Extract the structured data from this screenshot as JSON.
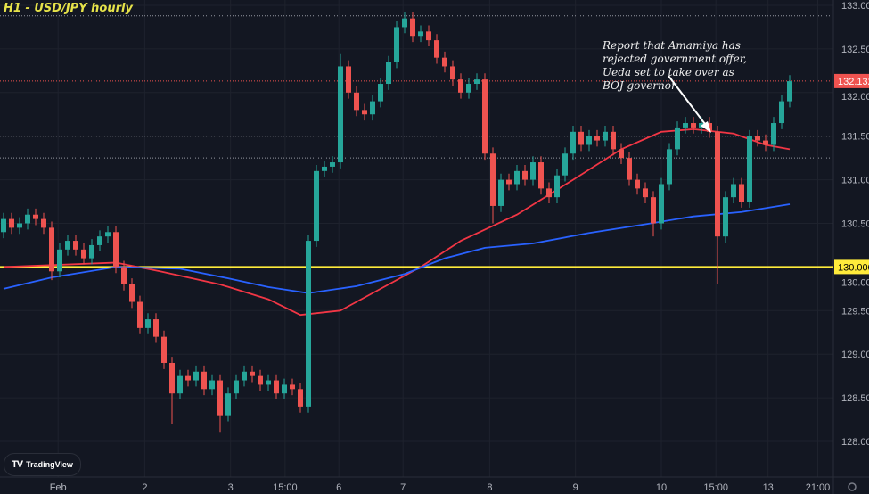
{
  "header": {
    "title": "H1 - USD/JPY hourly"
  },
  "annotation": {
    "text": "Report that Amamiya has rejected government offer,  Ueda set to take over as BOJ governor"
  },
  "branding": {
    "logo_text": "TradingView"
  },
  "chart_data": {
    "type": "candlestick",
    "symbol": "USD/JPY",
    "timeframe": "H1",
    "ylim": [
      127.7,
      133.1
    ],
    "y_ticks": [
      "133.000",
      "132.500",
      "132.000",
      "131.500",
      "131.000",
      "130.500",
      "130.000",
      "129.500",
      "129.000",
      "128.500",
      "128.000"
    ],
    "x_ticks": [
      {
        "label": "Feb",
        "at": 6.8
      },
      {
        "label": "2",
        "at": 17.6
      },
      {
        "label": "3",
        "at": 28.3
      },
      {
        "label": "15:00",
        "at": 35.1
      },
      {
        "label": "6",
        "at": 41.8
      },
      {
        "label": "7",
        "at": 49.8
      },
      {
        "label": "8",
        "at": 60.6
      },
      {
        "label": "9",
        "at": 71.3
      },
      {
        "label": "10",
        "at": 82
      },
      {
        "label": "15:00",
        "at": 88.8
      },
      {
        "label": "13",
        "at": 95.3
      },
      {
        "label": "21:00",
        "at": 101.5
      }
    ],
    "close": [
      130.55,
      130.45,
      130.5,
      130.6,
      130.55,
      130.45,
      129.95,
      130.2,
      130.3,
      130.2,
      130.1,
      130.25,
      130.35,
      130.4,
      130.0,
      129.8,
      129.6,
      129.3,
      129.4,
      129.2,
      128.9,
      128.55,
      128.75,
      128.7,
      128.8,
      128.6,
      128.7,
      128.3,
      128.55,
      128.7,
      128.8,
      128.75,
      128.65,
      128.7,
      128.55,
      128.65,
      128.6,
      128.4,
      130.3,
      131.1,
      131.15,
      131.2,
      132.3,
      132.0,
      131.8,
      131.75,
      131.9,
      132.1,
      132.35,
      132.75,
      132.85,
      132.65,
      132.7,
      132.6,
      132.4,
      132.3,
      132.15,
      132.0,
      132.1,
      132.15,
      131.3,
      130.7,
      131.0,
      130.95,
      131.1,
      131.0,
      131.2,
      130.9,
      130.8,
      131.05,
      131.3,
      131.55,
      131.4,
      131.5,
      131.45,
      131.55,
      131.35,
      131.25,
      131.0,
      130.9,
      130.8,
      130.5,
      130.95,
      131.35,
      131.6,
      131.65,
      131.6,
      131.65,
      131.55,
      130.35,
      130.8,
      130.95,
      130.75,
      131.5,
      131.45,
      131.4,
      131.65,
      131.9,
      132.13
    ],
    "first_open": 130.4,
    "wick_extremes": [
      {
        "i": 6,
        "low": 129.85
      },
      {
        "i": 21,
        "low": 128.2
      },
      {
        "i": 27,
        "low": 128.1
      },
      {
        "i": 42,
        "high": 132.45
      },
      {
        "i": 50,
        "high": 132.92
      },
      {
        "i": 61,
        "low": 130.5
      },
      {
        "i": 81,
        "low": 130.35
      },
      {
        "i": 89,
        "low": 129.8
      },
      {
        "i": 98,
        "high": 132.2
      }
    ],
    "moving_averages": [
      {
        "color": "#f23645",
        "points": [
          [
            0,
            130.0
          ],
          [
            14,
            130.05
          ],
          [
            19.5,
            129.95
          ],
          [
            27,
            129.8
          ],
          [
            33,
            129.63
          ],
          [
            37,
            129.45
          ],
          [
            42,
            129.5
          ],
          [
            46,
            129.7
          ],
          [
            52,
            130.0
          ],
          [
            57,
            130.3
          ],
          [
            64,
            130.6
          ],
          [
            71,
            131.0
          ],
          [
            77,
            131.35
          ],
          [
            82,
            131.55
          ],
          [
            86,
            131.58
          ],
          [
            91,
            131.53
          ],
          [
            95,
            131.4
          ],
          [
            98,
            131.35
          ]
        ]
      },
      {
        "color": "#2962ff",
        "points": [
          [
            0,
            129.75
          ],
          [
            6,
            129.88
          ],
          [
            14,
            130.0
          ],
          [
            22,
            129.98
          ],
          [
            28,
            129.87
          ],
          [
            33,
            129.77
          ],
          [
            38,
            129.7
          ],
          [
            44,
            129.78
          ],
          [
            50,
            129.92
          ],
          [
            55,
            130.1
          ],
          [
            60,
            130.22
          ],
          [
            66,
            130.27
          ],
          [
            73,
            130.39
          ],
          [
            80,
            130.49
          ],
          [
            86,
            130.58
          ],
          [
            92,
            130.63
          ],
          [
            98,
            130.72
          ]
        ]
      }
    ],
    "horizontal_lines": [
      {
        "price": 130.0,
        "style": "solid",
        "color": "#ffeb3b",
        "label": "130.000"
      },
      {
        "price": 132.132,
        "style": "dotted",
        "color": "#ef5350",
        "label": "132.132"
      },
      {
        "price": 132.88,
        "style": "dotted",
        "color": "#9598a1"
      },
      {
        "price": 131.5,
        "style": "dotted",
        "color": "#9598a1"
      },
      {
        "price": 131.25,
        "style": "dotted",
        "color": "#9598a1"
      }
    ],
    "colors": {
      "up": "#26a69a",
      "down": "#ef5350",
      "background": "#131722"
    }
  }
}
